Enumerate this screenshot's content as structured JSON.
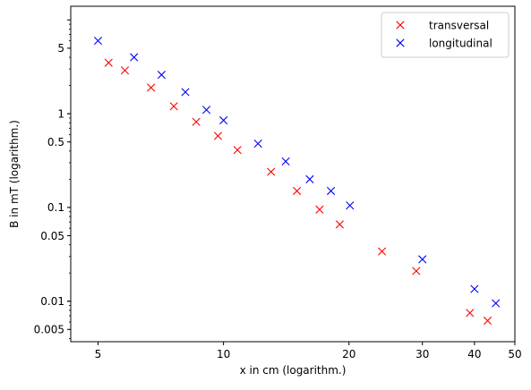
{
  "chart_data": {
    "type": "scatter",
    "x_scale": "log",
    "y_scale": "log",
    "xlim": [
      4.3,
      50
    ],
    "ylim": [
      0.0037,
      14
    ],
    "xlabel": "x in cm (logarithm.)",
    "ylabel": "B in mT (logarithm.)",
    "x_ticks": [
      {
        "value": 5,
        "label": "5"
      },
      {
        "value": 10,
        "label": "10"
      },
      {
        "value": 20,
        "label": "20"
      },
      {
        "value": 30,
        "label": "30"
      },
      {
        "value": 40,
        "label": "40"
      },
      {
        "value": 50,
        "label": "50"
      }
    ],
    "y_ticks": [
      {
        "value": 0.005,
        "label": "0.005"
      },
      {
        "value": 0.01,
        "label": "0.01"
      },
      {
        "value": 0.05,
        "label": "0.05"
      },
      {
        "value": 0.1,
        "label": "0.1"
      },
      {
        "value": 0.5,
        "label": "0.5"
      },
      {
        "value": 1,
        "label": "1"
      },
      {
        "value": 5,
        "label": "5"
      }
    ],
    "legend_position": "upper-right",
    "grid": false,
    "series": [
      {
        "name": "transversal",
        "color": "#ff0000",
        "marker": "x",
        "x": [
          5.3,
          5.8,
          6.7,
          7.6,
          8.6,
          9.7,
          10.8,
          13.0,
          15.0,
          17.0,
          19.0,
          24.0,
          29.0,
          39.0,
          43.0
        ],
        "y": [
          3.5,
          2.9,
          1.9,
          1.2,
          0.82,
          0.58,
          0.41,
          0.24,
          0.15,
          0.095,
          0.066,
          0.034,
          0.021,
          0.0075,
          0.0062
        ]
      },
      {
        "name": "longitudinal",
        "color": "#0000ff",
        "marker": "x",
        "x": [
          5.0,
          6.1,
          7.1,
          8.1,
          9.1,
          10.0,
          12.1,
          14.1,
          16.1,
          18.1,
          20.1,
          30.0,
          40.0,
          45.0
        ],
        "y": [
          6.0,
          4.0,
          2.6,
          1.7,
          1.1,
          0.85,
          0.48,
          0.31,
          0.2,
          0.15,
          0.105,
          0.028,
          0.0135,
          0.0095
        ]
      }
    ]
  }
}
